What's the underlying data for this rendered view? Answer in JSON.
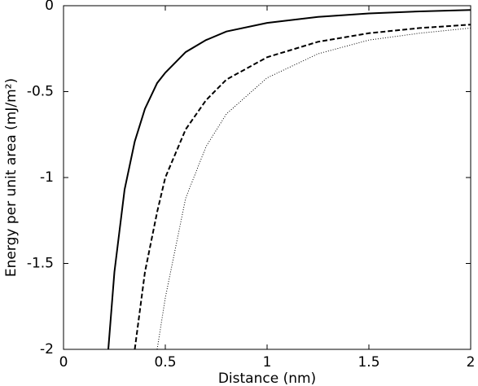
{
  "chart_data": {
    "type": "line",
    "x_label": "Distance (nm)",
    "y_label": "Energy per unit area (mJ/m²)",
    "x": [
      0.22,
      0.25,
      0.3,
      0.35,
      0.4,
      0.46,
      0.5,
      0.6,
      0.7,
      0.8,
      1,
      1.25,
      1.5,
      1.75,
      2
    ],
    "series": [
      {
        "color": "#000000",
        "dash": "solid",
        "values": [
          -2,
          -1.55,
          -1.07,
          -0.79,
          -0.6,
          -0.45,
          -0.39,
          -0.27,
          -0.2,
          -0.15,
          -0.1,
          -0.065,
          -0.045,
          -0.033,
          -0.025
        ]
      },
      {
        "color": "#000000",
        "dash": "dashed",
        "values": [
          null,
          null,
          null,
          -2,
          -1.55,
          -1.2,
          -1.0,
          -0.72,
          -0.55,
          -0.43,
          -0.3,
          -0.21,
          -0.16,
          -0.13,
          -0.11
        ]
      },
      {
        "color": "#000000",
        "dash": "dotted",
        "values": [
          null,
          null,
          null,
          null,
          null,
          -2,
          -1.7,
          -1.12,
          -0.82,
          -0.63,
          -0.42,
          -0.28,
          -0.2,
          -0.16,
          -0.13
        ]
      }
    ],
    "xlim": [
      0,
      2
    ],
    "ylim": [
      -2,
      0
    ],
    "xticks": [
      0,
      0.5,
      1,
      1.5,
      2
    ],
    "yticks": [
      0,
      -0.5,
      -1,
      -1.5,
      -2
    ],
    "grid": false
  }
}
